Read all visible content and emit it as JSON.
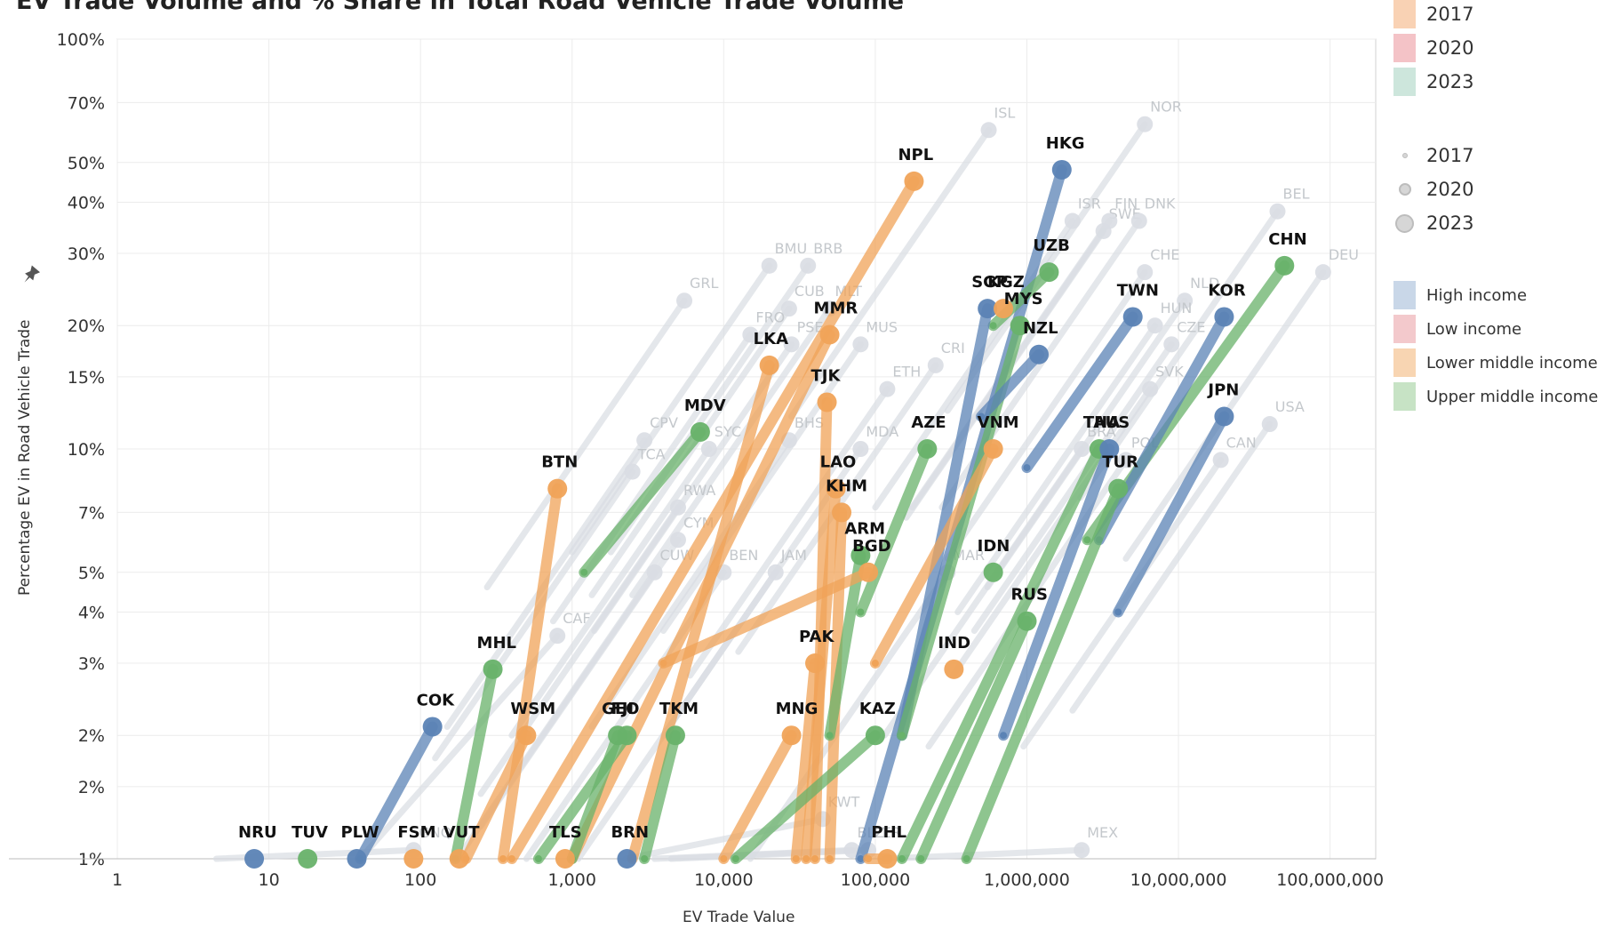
{
  "chart_data": {
    "type": "scatter",
    "title": "EV Trade Volume and % Share in Total Road Vehicle Trade Volume",
    "xlabel": "EV Trade Value",
    "ylabel": "Percentage EV in Road Vehicle Trade",
    "x_scale": "log",
    "y_scale": "log",
    "xlim": [
      1,
      200000000
    ],
    "ylim": [
      1,
      100
    ],
    "x_ticks": [
      {
        "v": 1,
        "label": "1"
      },
      {
        "v": 10,
        "label": "10"
      },
      {
        "v": 100,
        "label": "100"
      },
      {
        "v": 1000,
        "label": "1,000"
      },
      {
        "v": 10000,
        "label": "10,000"
      },
      {
        "v": 100000,
        "label": "100,000"
      },
      {
        "v": 1000000,
        "label": "1,000,000"
      },
      {
        "v": 10000000,
        "label": "10,000,000"
      },
      {
        "v": 100000000,
        "label": "100,000,000"
      }
    ],
    "y_ticks": [
      {
        "v": 1,
        "label": "1%"
      },
      {
        "v": 1.5,
        "label": "2%"
      },
      {
        "v": 2,
        "label": "2%"
      },
      {
        "v": 3,
        "label": "3%"
      },
      {
        "v": 4,
        "label": "4%"
      },
      {
        "v": 5,
        "label": "5%"
      },
      {
        "v": 7,
        "label": "7%"
      },
      {
        "v": 10,
        "label": "10%"
      },
      {
        "v": 15,
        "label": "15%"
      },
      {
        "v": 20,
        "label": "20%"
      },
      {
        "v": 30,
        "label": "30%"
      },
      {
        "v": 40,
        "label": "40%"
      },
      {
        "v": 50,
        "label": "50%"
      },
      {
        "v": 70,
        "label": "70%"
      },
      {
        "v": 100,
        "label": "100%"
      }
    ],
    "grid": true,
    "legend": [
      {
        "group": "year",
        "items": [
          {
            "label": "2017",
            "color": "#f9d2b4"
          },
          {
            "label": "2020",
            "color": "#f4c3c7"
          },
          {
            "label": "2023",
            "color": "#cde6dc"
          }
        ]
      },
      {
        "group": "size",
        "items": [
          {
            "label": "2017",
            "size": 5
          },
          {
            "label": "2020",
            "size": 11
          },
          {
            "label": "2023",
            "size": 18
          }
        ]
      },
      {
        "group": "income",
        "items": [
          {
            "label": "High income",
            "color": "#c9d7e8"
          },
          {
            "label": "Low income",
            "color": "#f3c9cc"
          },
          {
            "label": "Lower middle income",
            "color": "#f8d5b2"
          },
          {
            "label": "Upper middle income",
            "color": "#c7e3c5"
          }
        ]
      }
    ],
    "colors": {
      "High income": "#5b83b5",
      "Low income": "#e07a7f",
      "Lower middle income": "#f0a358",
      "Upper middle income": "#68b26a",
      "background_trail": "#d9dde3"
    },
    "highlighted": [
      {
        "name": "NPL",
        "group": "Lower middle income",
        "x": [
          400,
          180000
        ],
        "y": [
          1,
          45
        ]
      },
      {
        "name": "HKG",
        "group": "High income",
        "x": [
          80000,
          1700000
        ],
        "y": [
          1,
          48
        ]
      },
      {
        "name": "UZB",
        "group": "Upper middle income",
        "x": [
          600000,
          1400000
        ],
        "y": [
          20,
          27
        ]
      },
      {
        "name": "CHN",
        "group": "Upper middle income",
        "x": [
          2500000,
          50000000
        ],
        "y": [
          6,
          28
        ]
      },
      {
        "name": "KOR",
        "group": "High income",
        "x": [
          3000000,
          20000000
        ],
        "y": [
          6,
          21
        ]
      },
      {
        "name": "TWN",
        "group": "High income",
        "x": [
          1000000,
          5000000
        ],
        "y": [
          9,
          21
        ]
      },
      {
        "name": "SGP",
        "group": "High income",
        "x": [
          150000,
          550000
        ],
        "y": [
          2,
          22
        ]
      },
      {
        "name": "KGZ",
        "group": "Lower middle income",
        "x": [
          700000
        ],
        "y": [
          22
        ]
      },
      {
        "name": "MYS",
        "group": "Upper middle income",
        "x": [
          150000,
          900000
        ],
        "y": [
          2,
          20
        ]
      },
      {
        "name": "NZL",
        "group": "High income",
        "x": [
          500000,
          1200000
        ],
        "y": [
          12,
          17
        ]
      },
      {
        "name": "MMR",
        "group": "Lower middle income",
        "x": [
          1000,
          50000
        ],
        "y": [
          1,
          19
        ]
      },
      {
        "name": "LKA",
        "group": "Lower middle income",
        "x": [
          2500,
          20000
        ],
        "y": [
          1,
          16
        ]
      },
      {
        "name": "TJK",
        "group": "Lower middle income",
        "x": [
          40000,
          48000
        ],
        "y": [
          1,
          13
        ]
      },
      {
        "name": "MDV",
        "group": "Upper middle income",
        "x": [
          1200,
          7000
        ],
        "y": [
          5,
          11
        ]
      },
      {
        "name": "AZE",
        "group": "Upper middle income",
        "x": [
          80000,
          220000
        ],
        "y": [
          4,
          10
        ]
      },
      {
        "name": "VNM",
        "group": "Lower middle income",
        "x": [
          100000,
          600000
        ],
        "y": [
          3,
          10
        ]
      },
      {
        "name": "THA",
        "group": "Upper middle income",
        "x": [
          150000,
          3000000
        ],
        "y": [
          1,
          10
        ]
      },
      {
        "name": "AUS",
        "group": "High income",
        "x": [
          700000,
          3500000
        ],
        "y": [
          2,
          10
        ]
      },
      {
        "name": "JPN",
        "group": "High income",
        "x": [
          4000000,
          20000000
        ],
        "y": [
          4,
          12
        ]
      },
      {
        "name": "TUR",
        "group": "Upper middle income",
        "x": [
          400000,
          4000000
        ],
        "y": [
          1,
          8
        ]
      },
      {
        "name": "BTN",
        "group": "Lower middle income",
        "x": [
          350,
          800
        ],
        "y": [
          1,
          8
        ]
      },
      {
        "name": "LAO",
        "group": "Lower middle income",
        "x": [
          35000,
          55000
        ],
        "y": [
          1,
          8
        ]
      },
      {
        "name": "KHM",
        "group": "Lower middle income",
        "x": [
          50000,
          60000
        ],
        "y": [
          1,
          7
        ]
      },
      {
        "name": "ARM",
        "group": "Upper middle income",
        "x": [
          50000,
          80000
        ],
        "y": [
          2,
          5.5
        ]
      },
      {
        "name": "IDN",
        "group": "Upper middle income",
        "x": [
          600000
        ],
        "y": [
          5
        ]
      },
      {
        "name": "BGD",
        "group": "Lower middle income",
        "x": [
          4000,
          90000
        ],
        "y": [
          3,
          5
        ]
      },
      {
        "name": "RUS",
        "group": "Upper middle income",
        "x": [
          200000,
          1000000
        ],
        "y": [
          1,
          3.8
        ]
      },
      {
        "name": "PAK",
        "group": "Lower middle income",
        "x": [
          30000,
          40000
        ],
        "y": [
          1,
          3
        ]
      },
      {
        "name": "IND",
        "group": "Lower middle income",
        "x": [
          330000
        ],
        "y": [
          2.9
        ]
      },
      {
        "name": "MHL",
        "group": "Upper middle income",
        "x": [
          170,
          300
        ],
        "y": [
          1,
          2.9
        ]
      },
      {
        "name": "COK",
        "group": "High income",
        "x": [
          40,
          120
        ],
        "y": [
          1,
          2.1
        ]
      },
      {
        "name": "WSM",
        "group": "Lower middle income",
        "x": [
          200,
          500
        ],
        "y": [
          1,
          2
        ]
      },
      {
        "name": "GEO",
        "group": "Upper middle income",
        "x": [
          1000,
          2000
        ],
        "y": [
          1,
          2
        ]
      },
      {
        "name": "FJI",
        "group": "Upper middle income",
        "x": [
          600,
          2300
        ],
        "y": [
          1,
          2
        ]
      },
      {
        "name": "TKM",
        "group": "Upper middle income",
        "x": [
          3000,
          4800
        ],
        "y": [
          1,
          2
        ]
      },
      {
        "name": "MNG",
        "group": "Lower middle income",
        "x": [
          10000,
          28000
        ],
        "y": [
          1,
          2
        ]
      },
      {
        "name": "KAZ",
        "group": "Upper middle income",
        "x": [
          12000,
          100000
        ],
        "y": [
          1,
          2
        ]
      },
      {
        "name": "TUV",
        "group": "Upper middle income",
        "x": [
          18
        ],
        "y": [
          1
        ]
      },
      {
        "name": "PLW",
        "group": "High income",
        "x": [
          38
        ],
        "y": [
          1
        ]
      },
      {
        "name": "NRU",
        "group": "High income",
        "x": [
          8
        ],
        "y": [
          1
        ]
      },
      {
        "name": "FSM",
        "group": "Lower middle income",
        "x": [
          90
        ],
        "y": [
          1
        ]
      },
      {
        "name": "VUT",
        "group": "Lower middle income",
        "x": [
          180
        ],
        "y": [
          1
        ]
      },
      {
        "name": "BRN",
        "group": "High income",
        "x": [
          2300
        ],
        "y": [
          1
        ]
      },
      {
        "name": "TLS",
        "group": "Lower middle income",
        "x": [
          900
        ],
        "y": [
          1
        ]
      },
      {
        "name": "PHL",
        "group": "Lower middle income",
        "x": [
          90000,
          120000
        ],
        "y": [
          1,
          1
        ]
      }
    ],
    "background_labels": [
      {
        "name": "ISL",
        "x": 560000,
        "y": 60
      },
      {
        "name": "NOR",
        "x": 6000000,
        "y": 62
      },
      {
        "name": "BEL",
        "x": 45000000,
        "y": 38
      },
      {
        "name": "SWE",
        "x": 3200000,
        "y": 34
      },
      {
        "name": "DEU",
        "x": 90000000,
        "y": 27
      },
      {
        "name": "ISR",
        "x": 2000000,
        "y": 36
      },
      {
        "name": "FIN",
        "x": 3500000,
        "y": 36
      },
      {
        "name": "DNK",
        "x": 5500000,
        "y": 36
      },
      {
        "name": "CHE",
        "x": 6000000,
        "y": 27
      },
      {
        "name": "BMU",
        "x": 20000,
        "y": 28
      },
      {
        "name": "BRB",
        "x": 36000,
        "y": 28
      },
      {
        "name": "GRL",
        "x": 5500,
        "y": 23
      },
      {
        "name": "CUB",
        "x": 27000,
        "y": 22
      },
      {
        "name": "MLT",
        "x": 50000,
        "y": 22
      },
      {
        "name": "FRO",
        "x": 15000,
        "y": 19
      },
      {
        "name": "PSE",
        "x": 28000,
        "y": 18
      },
      {
        "name": "MUS",
        "x": 80000,
        "y": 18
      },
      {
        "name": "CRI",
        "x": 250000,
        "y": 16
      },
      {
        "name": "ETH",
        "x": 120000,
        "y": 14
      },
      {
        "name": "NLD",
        "x": 11000000,
        "y": 23
      },
      {
        "name": "HUN",
        "x": 7000000,
        "y": 20
      },
      {
        "name": "CZE",
        "x": 9000000,
        "y": 18
      },
      {
        "name": "SVK",
        "x": 6500000,
        "y": 14
      },
      {
        "name": "USA",
        "x": 40000000,
        "y": 11.5
      },
      {
        "name": "CAN",
        "x": 19000000,
        "y": 9.4
      },
      {
        "name": "BRA",
        "x": 2300000,
        "y": 10
      },
      {
        "name": "POL",
        "x": 4500000,
        "y": 9.4
      },
      {
        "name": "BHS",
        "x": 27000,
        "y": 10.5
      },
      {
        "name": "SYC",
        "x": 8000,
        "y": 10
      },
      {
        "name": "CPV",
        "x": 3000,
        "y": 10.5
      },
      {
        "name": "TCA",
        "x": 2500,
        "y": 8.8
      },
      {
        "name": "MDA",
        "x": 80000,
        "y": 10
      },
      {
        "name": "RWA",
        "x": 5000,
        "y": 7.2
      },
      {
        "name": "CYM",
        "x": 5000,
        "y": 6
      },
      {
        "name": "CUW",
        "x": 3500,
        "y": 5
      },
      {
        "name": "BEN",
        "x": 10000,
        "y": 5
      },
      {
        "name": "JAM",
        "x": 22000,
        "y": 5
      },
      {
        "name": "MAR",
        "x": 300000,
        "y": 5
      },
      {
        "name": "CAF",
        "x": 800,
        "y": 3.5
      },
      {
        "name": "GNQ",
        "x": 90,
        "y": 1.05
      },
      {
        "name": "PER",
        "x": 90000,
        "y": 1.05
      },
      {
        "name": "MEX",
        "x": 2300000,
        "y": 1.05
      },
      {
        "name": "KWT",
        "x": 45000,
        "y": 1.25
      },
      {
        "name": "BLZ",
        "x": 70000,
        "y": 1.05
      }
    ]
  }
}
